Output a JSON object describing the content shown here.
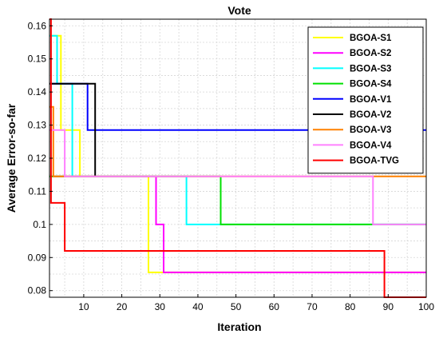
{
  "chart_data": {
    "type": "line",
    "title": "Vote",
    "xlabel": "Iteration",
    "ylabel": "Average Error-so-far",
    "xlim": [
      1,
      100
    ],
    "ylim": [
      0.078,
      0.162
    ],
    "grid": true,
    "legend_position": "top-right",
    "xticks": [
      {
        "value": 10,
        "label": "10"
      },
      {
        "value": 20,
        "label": "20"
      },
      {
        "value": 30,
        "label": "30"
      },
      {
        "value": 40,
        "label": "40"
      },
      {
        "value": 50,
        "label": "50"
      },
      {
        "value": 60,
        "label": "60"
      },
      {
        "value": 70,
        "label": "70"
      },
      {
        "value": 80,
        "label": "80"
      },
      {
        "value": 90,
        "label": "90"
      },
      {
        "value": 100,
        "label": "100"
      }
    ],
    "yticks": [
      {
        "value": 0.08,
        "label": "0.08"
      },
      {
        "value": 0.09,
        "label": "0.09"
      },
      {
        "value": 0.1,
        "label": "0.1"
      },
      {
        "value": 0.11,
        "label": "0.11"
      },
      {
        "value": 0.12,
        "label": "0.12"
      },
      {
        "value": 0.13,
        "label": "0.13"
      },
      {
        "value": 0.14,
        "label": "0.14"
      },
      {
        "value": 0.15,
        "label": "0.15"
      },
      {
        "value": 0.16,
        "label": "0.16"
      }
    ],
    "series": [
      {
        "name": "BGOA-S1",
        "color": "#ffff00",
        "points": [
          [
            1,
            0.157
          ],
          [
            4,
            0.157
          ],
          [
            4,
            0.1285
          ],
          [
            9,
            0.1285
          ],
          [
            9,
            0.1145
          ],
          [
            27,
            0.1145
          ],
          [
            27,
            0.0855
          ],
          [
            100,
            0.0855
          ]
        ]
      },
      {
        "name": "BGOA-S2",
        "color": "#ff00ff",
        "points": [
          [
            1,
            0.1145
          ],
          [
            29,
            0.1145
          ],
          [
            29,
            0.1
          ],
          [
            31,
            0.1
          ],
          [
            31,
            0.0855
          ],
          [
            100,
            0.0855
          ]
        ]
      },
      {
        "name": "BGOA-S3",
        "color": "#00ffff",
        "points": [
          [
            1,
            0.157
          ],
          [
            3,
            0.157
          ],
          [
            3,
            0.1425
          ],
          [
            7,
            0.1425
          ],
          [
            7,
            0.1145
          ],
          [
            37,
            0.1145
          ],
          [
            37,
            0.1
          ],
          [
            100,
            0.1
          ]
        ]
      },
      {
        "name": "BGOA-S4",
        "color": "#00e000",
        "points": [
          [
            1,
            0.1145
          ],
          [
            46,
            0.1145
          ],
          [
            46,
            0.1
          ],
          [
            100,
            0.1
          ]
        ]
      },
      {
        "name": "BGOA-V1",
        "color": "#0000ff",
        "points": [
          [
            1,
            0.1425
          ],
          [
            11,
            0.1425
          ],
          [
            11,
            0.1285
          ],
          [
            100,
            0.1285
          ]
        ]
      },
      {
        "name": "BGOA-V2",
        "color": "#000000",
        "points": [
          [
            1,
            0.1425
          ],
          [
            13,
            0.1425
          ],
          [
            13,
            0.1145
          ]
        ]
      },
      {
        "name": "BGOA-V3",
        "color": "#ff8000",
        "points": [
          [
            1,
            0.1355
          ],
          [
            2,
            0.1355
          ],
          [
            2,
            0.1145
          ],
          [
            100,
            0.1145
          ]
        ]
      },
      {
        "name": "BGOA-V4",
        "color": "#ff80ff",
        "points": [
          [
            1,
            0.1285
          ],
          [
            5,
            0.1285
          ],
          [
            5,
            0.1145
          ],
          [
            86,
            0.1145
          ],
          [
            86,
            0.1
          ],
          [
            100,
            0.1
          ]
        ]
      },
      {
        "name": "BGOA-TVG",
        "color": "#ff0000",
        "points": [
          [
            1,
            0.162
          ],
          [
            1.4,
            0.162
          ],
          [
            1.4,
            0.1065
          ],
          [
            5,
            0.1065
          ],
          [
            5,
            0.092
          ],
          [
            89,
            0.092
          ],
          [
            89,
            0.078
          ],
          [
            100,
            0.078
          ]
        ]
      }
    ]
  }
}
